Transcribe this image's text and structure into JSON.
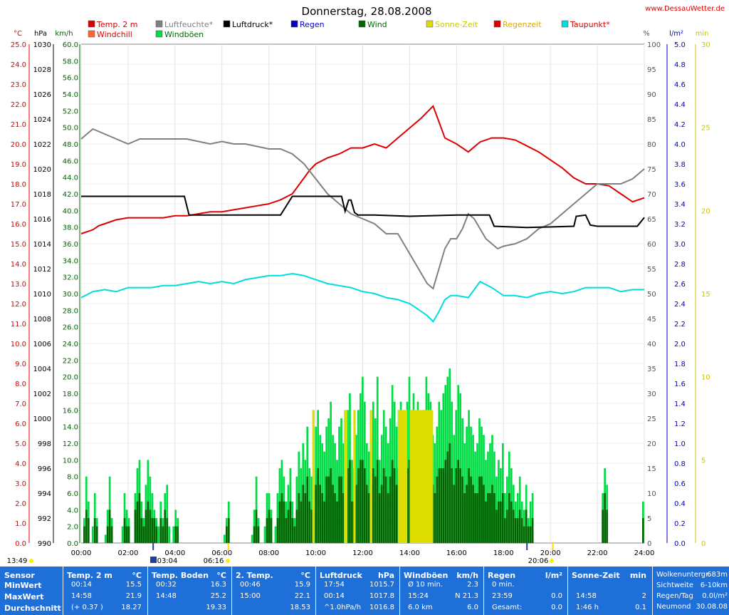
{
  "title": "Donnerstag, 28.08.2008",
  "site": "www.DessauWetter.de",
  "colors": {
    "temp": "#dd0000",
    "humidity": "#808080",
    "pressure": "#000000",
    "rain": "#0000cc",
    "wind": "#006600",
    "gust": "#00dd44",
    "sun": "#dddd00",
    "raintime": "#dd0000",
    "dewpoint": "#00dddd",
    "windchill": "#ff6633"
  },
  "legend": [
    {
      "label": "Temp. 2 m",
      "color": "#dd0000",
      "text_color": "#dd0000"
    },
    {
      "label": "Luftfeuchte*",
      "color": "#808080",
      "text_color": "#808080"
    },
    {
      "label": "Luftdruck*",
      "color": "#000000",
      "text_color": "#000000"
    },
    {
      "label": "Regen",
      "color": "#0000cc",
      "text_color": "#0000cc"
    },
    {
      "label": "Wind",
      "color": "#006600",
      "text_color": "#006600"
    },
    {
      "label": "Sonne-Zeit",
      "color": "#dddd00",
      "text_color": "#c8c800"
    },
    {
      "label": "Regenzeit",
      "color": "#dd0000",
      "text_color": "#ddaa00"
    },
    {
      "label": "Taupunkt*",
      "color": "#00dddd",
      "text_color": "#dd0000"
    },
    {
      "label": "Windchill",
      "color": "#ff6633",
      "text_color": "#dd0000"
    },
    {
      "label": "Windböen",
      "color": "#00dd44",
      "text_color": "#006600"
    }
  ],
  "axis_units": {
    "temp": "°C",
    "pressure": "hPa",
    "wind": "km/h",
    "humidity": "%",
    "rain": "l/m²",
    "sun": "min"
  },
  "time_marks": {
    "left": "13:49",
    "moon": "03:04",
    "sunrise": "06:16",
    "sunset": "20:06"
  },
  "chart_data": {
    "type": "line",
    "x_label_hours": [
      "00:00",
      "02:00",
      "04:00",
      "06:00",
      "08:00",
      "10:00",
      "12:00",
      "14:00",
      "16:00",
      "18:00",
      "20:00",
      "22:00",
      "24:00"
    ],
    "axes": {
      "temp": {
        "min": 0,
        "max": 25,
        "step": 1,
        "decimals": 1,
        "unit": "°C"
      },
      "pressure": {
        "min": 990,
        "max": 1030,
        "step": 2,
        "decimals": 0,
        "unit": "hPa"
      },
      "wind": {
        "min": 0,
        "max": 60,
        "step": 2,
        "decimals": 1,
        "unit": "km/h"
      },
      "humidity": {
        "min": 40,
        "max": 100,
        "step": 5,
        "decimals": 0,
        "unit": "%",
        "lower_ticks_start": 0
      },
      "rain": {
        "min": 0,
        "max": 5,
        "step": 0.2,
        "decimals": 1,
        "unit": "l/m²"
      },
      "sun": {
        "min": 0,
        "max": 30,
        "step": 5,
        "decimals": 0,
        "unit": "min"
      }
    },
    "series": [
      {
        "name": "Temp. 2 m",
        "axis": "temp",
        "color": "#dd0000",
        "x": [
          0,
          0.25,
          0.5,
          0.75,
          1,
          1.5,
          2,
          2.5,
          3,
          3.5,
          4,
          4.5,
          5,
          5.5,
          6,
          6.5,
          7,
          7.5,
          8,
          8.5,
          9,
          9.25,
          9.5,
          9.75,
          10,
          10.5,
          11,
          11.5,
          12,
          12.5,
          13,
          13.5,
          14,
          14.5,
          15,
          15.5,
          16,
          16.5,
          17,
          17.5,
          18,
          18.5,
          19,
          19.5,
          20,
          20.5,
          21,
          21.5,
          22,
          22.5,
          23,
          23.5,
          24
        ],
        "y": [
          15.5,
          15.6,
          15.7,
          15.9,
          16.0,
          16.2,
          16.3,
          16.3,
          16.3,
          16.3,
          16.4,
          16.4,
          16.5,
          16.6,
          16.6,
          16.7,
          16.8,
          16.9,
          17.0,
          17.2,
          17.5,
          17.9,
          18.3,
          18.7,
          19.0,
          19.3,
          19.5,
          19.8,
          19.8,
          20.0,
          19.8,
          20.3,
          20.8,
          21.3,
          21.9,
          20.3,
          20.0,
          19.6,
          20.1,
          20.3,
          20.3,
          20.2,
          19.9,
          19.6,
          19.2,
          18.8,
          18.3,
          18.0,
          18.0,
          17.9,
          17.5,
          17.1,
          17.3
        ]
      },
      {
        "name": "Luftfeuchte*",
        "axis": "humidity",
        "color": "#808080",
        "x": [
          0,
          0.25,
          0.5,
          0.75,
          1,
          1.5,
          2,
          2.5,
          3,
          3.5,
          4,
          4.5,
          5,
          5.5,
          6,
          6.5,
          7,
          7.5,
          8,
          8.5,
          9,
          9.5,
          10,
          10.5,
          11,
          11.5,
          12,
          12.5,
          13,
          13.5,
          14,
          14.25,
          14.5,
          14.75,
          15,
          15.25,
          15.5,
          15.75,
          16,
          16.25,
          16.5,
          16.75,
          17,
          17.25,
          17.5,
          17.75,
          18,
          18.5,
          19,
          19.5,
          20,
          20.5,
          21,
          21.5,
          22,
          22.5,
          23,
          23.5,
          24
        ],
        "y": [
          81,
          82,
          83,
          82.5,
          82,
          81,
          80,
          81,
          81,
          81,
          81,
          81,
          80.5,
          80,
          80.5,
          80,
          80,
          79.5,
          79,
          79,
          78,
          76,
          73,
          70,
          68,
          66,
          65,
          64,
          62,
          62,
          58,
          56,
          54,
          52,
          51,
          55,
          59,
          61,
          61,
          63,
          66,
          65,
          63,
          61,
          60,
          59,
          59.5,
          60,
          61,
          63,
          64,
          66,
          68,
          70,
          72,
          72,
          72,
          73,
          75
        ]
      },
      {
        "name": "Luftdruck*",
        "axis": "pressure",
        "color": "#000000",
        "x": [
          0,
          4.4,
          4.6,
          8.5,
          9.0,
          9.2,
          11.1,
          11.25,
          11.4,
          11.5,
          11.65,
          11.8,
          12.5,
          14.0,
          16.0,
          17.4,
          17.6,
          19.0,
          21.0,
          21.1,
          21.5,
          21.7,
          22.0,
          23.7,
          24.0
        ],
        "y": [
          1017.8,
          1017.8,
          1016.3,
          1016.3,
          1017.8,
          1017.8,
          1017.8,
          1016.6,
          1017.5,
          1017.5,
          1016.5,
          1016.3,
          1016.3,
          1016.2,
          1016.3,
          1016.3,
          1015.4,
          1015.3,
          1015.4,
          1016.2,
          1016.3,
          1015.5,
          1015.4,
          1015.4,
          1016.1
        ]
      },
      {
        "name": "Taupunkt*",
        "axis": "temp",
        "color": "#00dddd",
        "x": [
          0,
          0.5,
          1,
          1.5,
          2,
          2.5,
          3,
          3.5,
          4,
          4.5,
          5,
          5.5,
          6,
          6.5,
          7,
          7.5,
          8,
          8.5,
          9,
          9.5,
          10,
          10.5,
          11,
          11.5,
          12,
          12.5,
          13,
          13.5,
          14,
          14.25,
          14.5,
          14.75,
          15,
          15.25,
          15.5,
          15.75,
          16,
          16.5,
          17,
          17.5,
          18,
          18.5,
          19,
          19.5,
          20,
          20.5,
          21,
          21.5,
          22,
          22.5,
          23,
          23.5,
          24
        ],
        "y": [
          12.3,
          12.6,
          12.7,
          12.6,
          12.8,
          12.8,
          12.8,
          12.9,
          12.9,
          13.0,
          13.1,
          13.0,
          13.1,
          13.0,
          13.2,
          13.3,
          13.4,
          13.4,
          13.5,
          13.4,
          13.2,
          13.0,
          12.9,
          12.8,
          12.6,
          12.5,
          12.3,
          12.2,
          12.0,
          11.8,
          11.6,
          11.4,
          11.1,
          11.6,
          12.2,
          12.4,
          12.4,
          12.3,
          13.1,
          12.8,
          12.4,
          12.4,
          12.3,
          12.5,
          12.6,
          12.5,
          12.6,
          12.8,
          12.8,
          12.8,
          12.6,
          12.7,
          12.7
        ]
      }
    ],
    "bars": [
      {
        "name": "Windböen",
        "axis": "wind",
        "color": "#00dd44",
        "values": [
          0,
          3,
          8,
          5,
          0,
          2,
          6,
          3,
          0,
          0,
          0,
          1,
          4,
          8,
          3,
          0,
          0,
          0,
          0,
          2,
          6,
          4,
          3,
          0,
          0,
          6,
          9,
          10,
          5,
          3,
          7,
          10,
          8,
          6,
          4,
          3,
          2,
          5,
          3,
          6,
          7,
          2,
          0,
          2,
          4,
          3,
          0,
          0,
          0,
          0,
          0,
          0,
          0,
          0,
          0,
          0,
          0,
          0,
          0,
          0,
          0,
          0,
          0,
          0,
          0,
          0,
          0,
          1,
          3,
          5,
          0,
          0,
          0,
          0,
          0,
          0,
          0,
          0,
          0,
          0,
          1,
          4,
          8,
          3,
          0,
          0,
          2,
          6,
          6,
          4,
          0,
          2,
          6,
          9,
          10,
          8,
          5,
          7,
          9,
          5,
          3,
          8,
          11,
          9,
          12,
          10,
          14,
          9,
          8,
          7,
          14,
          16,
          13,
          12,
          11,
          14,
          15,
          17,
          13,
          12,
          10,
          14,
          15,
          12,
          11,
          16,
          18,
          10,
          9,
          13,
          16,
          18,
          20,
          17,
          12,
          11,
          13,
          17,
          15,
          20,
          10,
          13,
          16,
          14,
          12,
          15,
          19,
          17,
          14,
          16,
          17,
          13,
          15,
          17,
          20,
          16,
          18,
          14,
          17,
          12,
          13,
          16,
          20,
          18,
          17,
          13,
          12,
          14,
          17,
          16,
          18,
          19,
          20,
          21,
          17,
          13,
          16,
          19,
          18,
          15,
          12,
          14,
          16,
          14,
          13,
          11,
          12,
          15,
          14,
          13,
          10,
          11,
          12,
          13,
          11,
          8,
          10,
          9,
          12,
          6,
          8,
          11,
          9,
          7,
          5,
          6,
          8,
          5,
          4,
          7,
          3,
          5,
          6,
          0,
          0,
          0,
          0,
          0,
          0,
          0,
          0,
          0,
          0,
          0,
          0,
          0,
          0,
          0,
          0,
          0,
          0,
          0,
          0,
          0,
          0,
          0,
          0,
          0,
          0,
          0,
          0,
          0,
          0,
          0,
          0,
          6,
          9,
          7,
          0,
          0,
          0,
          0,
          0,
          0,
          0,
          0,
          0,
          0,
          0,
          0,
          0,
          0,
          0,
          0,
          5
        ]
      },
      {
        "name": "Wind",
        "axis": "wind",
        "color": "#006600",
        "values": [
          0,
          2,
          4,
          3,
          0,
          0,
          3,
          2,
          0,
          0,
          0,
          0,
          2,
          4,
          2,
          0,
          0,
          0,
          0,
          0,
          3,
          2,
          2,
          0,
          0,
          4,
          5,
          6,
          3,
          2,
          4,
          5,
          4,
          3,
          3,
          2,
          0,
          3,
          2,
          4,
          3,
          0,
          0,
          0,
          2,
          2,
          0,
          0,
          0,
          0,
          0,
          0,
          0,
          0,
          0,
          0,
          0,
          0,
          0,
          0,
          0,
          0,
          0,
          0,
          0,
          0,
          0,
          0,
          2,
          3,
          0,
          0,
          0,
          0,
          0,
          0,
          0,
          0,
          0,
          0,
          0,
          2,
          4,
          2,
          0,
          0,
          0,
          3,
          4,
          3,
          0,
          0,
          3,
          5,
          6,
          5,
          3,
          4,
          5,
          3,
          2,
          4,
          6,
          5,
          7,
          6,
          8,
          5,
          4,
          4,
          7,
          9,
          7,
          6,
          5,
          8,
          8,
          9,
          7,
          6,
          5,
          8,
          8,
          6,
          5,
          9,
          10,
          5,
          5,
          7,
          9,
          10,
          10,
          9,
          7,
          6,
          7,
          9,
          8,
          10,
          6,
          7,
          9,
          8,
          6,
          8,
          10,
          9,
          7,
          9,
          9,
          7,
          8,
          9,
          10,
          8,
          9,
          7,
          9,
          6,
          7,
          9,
          11,
          10,
          9,
          7,
          6,
          8,
          9,
          9,
          9,
          10,
          11,
          12,
          9,
          7,
          9,
          10,
          9,
          8,
          6,
          7,
          9,
          8,
          7,
          6,
          6,
          8,
          8,
          7,
          5,
          6,
          6,
          7,
          6,
          4,
          5,
          5,
          6,
          3,
          4,
          6,
          5,
          4,
          3,
          3,
          4,
          3,
          2,
          4,
          2,
          2,
          3,
          0,
          0,
          0,
          0,
          0,
          0,
          0,
          0,
          0,
          0,
          0,
          0,
          0,
          0,
          0,
          0,
          0,
          0,
          0,
          0,
          0,
          0,
          0,
          0,
          0,
          0,
          0,
          0,
          0,
          0,
          0,
          0,
          4,
          6,
          4,
          0,
          0,
          0,
          0,
          0,
          0,
          0,
          0,
          0,
          0,
          0,
          0,
          0,
          0,
          0,
          0,
          3
        ]
      }
    ],
    "sun_blocks": [
      {
        "start": 9.85,
        "end": 9.95,
        "minutes": 2
      },
      {
        "start": 11.2,
        "end": 11.35,
        "minutes": 2
      },
      {
        "start": 11.6,
        "end": 11.7,
        "minutes": 2
      },
      {
        "start": 12.3,
        "end": 12.4,
        "minutes": 2
      },
      {
        "start": 13.5,
        "end": 13.9,
        "minutes": 2
      },
      {
        "start": 14.0,
        "end": 15.0,
        "minutes": 2
      }
    ]
  },
  "stats": {
    "row_labels": [
      "Sensor",
      "MinWert",
      "MaxWert",
      "Durchschnitt"
    ],
    "columns": [
      {
        "title": "Temp. 2 m",
        "unit": "°C",
        "rows": [
          [
            "00:14",
            "15.5"
          ],
          [
            "14:58",
            "21.9"
          ],
          [
            "(+ 0.37 )",
            "18.27"
          ]
        ]
      },
      {
        "title": "Temp. Boden",
        "unit": "°C",
        "rows": [
          [
            "00:32",
            "16.3"
          ],
          [
            "14:48",
            "25.2"
          ],
          [
            "",
            "19.33"
          ]
        ]
      },
      {
        "title": "2. Temp.",
        "unit": "°C",
        "rows": [
          [
            "00:46",
            "15.9"
          ],
          [
            "15:00",
            "22.1"
          ],
          [
            "",
            "18.53"
          ]
        ]
      },
      {
        "title": "Luftdruck",
        "unit": "hPa",
        "rows": [
          [
            "17:54",
            "1015.7"
          ],
          [
            "00:14",
            "1017.8"
          ],
          [
            "^1.0hPa/h",
            "1016.8"
          ]
        ]
      },
      {
        "title": "Windböen",
        "unit": "km/h",
        "rows": [
          [
            "Ø 10 min.",
            "2.3"
          ],
          [
            "15:24",
            "N 21.3"
          ],
          [
            "6.0 km",
            "6.0"
          ]
        ]
      },
      {
        "title": "Regen",
        "unit": "l/m²",
        "rows": [
          [
            "0 min.",
            ""
          ],
          [
            "23:59",
            "0.0"
          ],
          [
            "Gesamt:",
            "0.0"
          ]
        ]
      },
      {
        "title": "Sonne-Zeit",
        "unit": "min",
        "rows": [
          [
            "",
            ""
          ],
          [
            "14:58",
            "2"
          ],
          [
            "1:46 h",
            "0.1"
          ]
        ]
      }
    ],
    "extra": [
      [
        "Wolkenuntergr.",
        "683m"
      ],
      [
        "Sichtweite",
        "6-10km"
      ],
      [
        "Regen/Tag",
        "0.0l/m²"
      ],
      [
        "Neumond",
        "30.08.08"
      ]
    ]
  }
}
